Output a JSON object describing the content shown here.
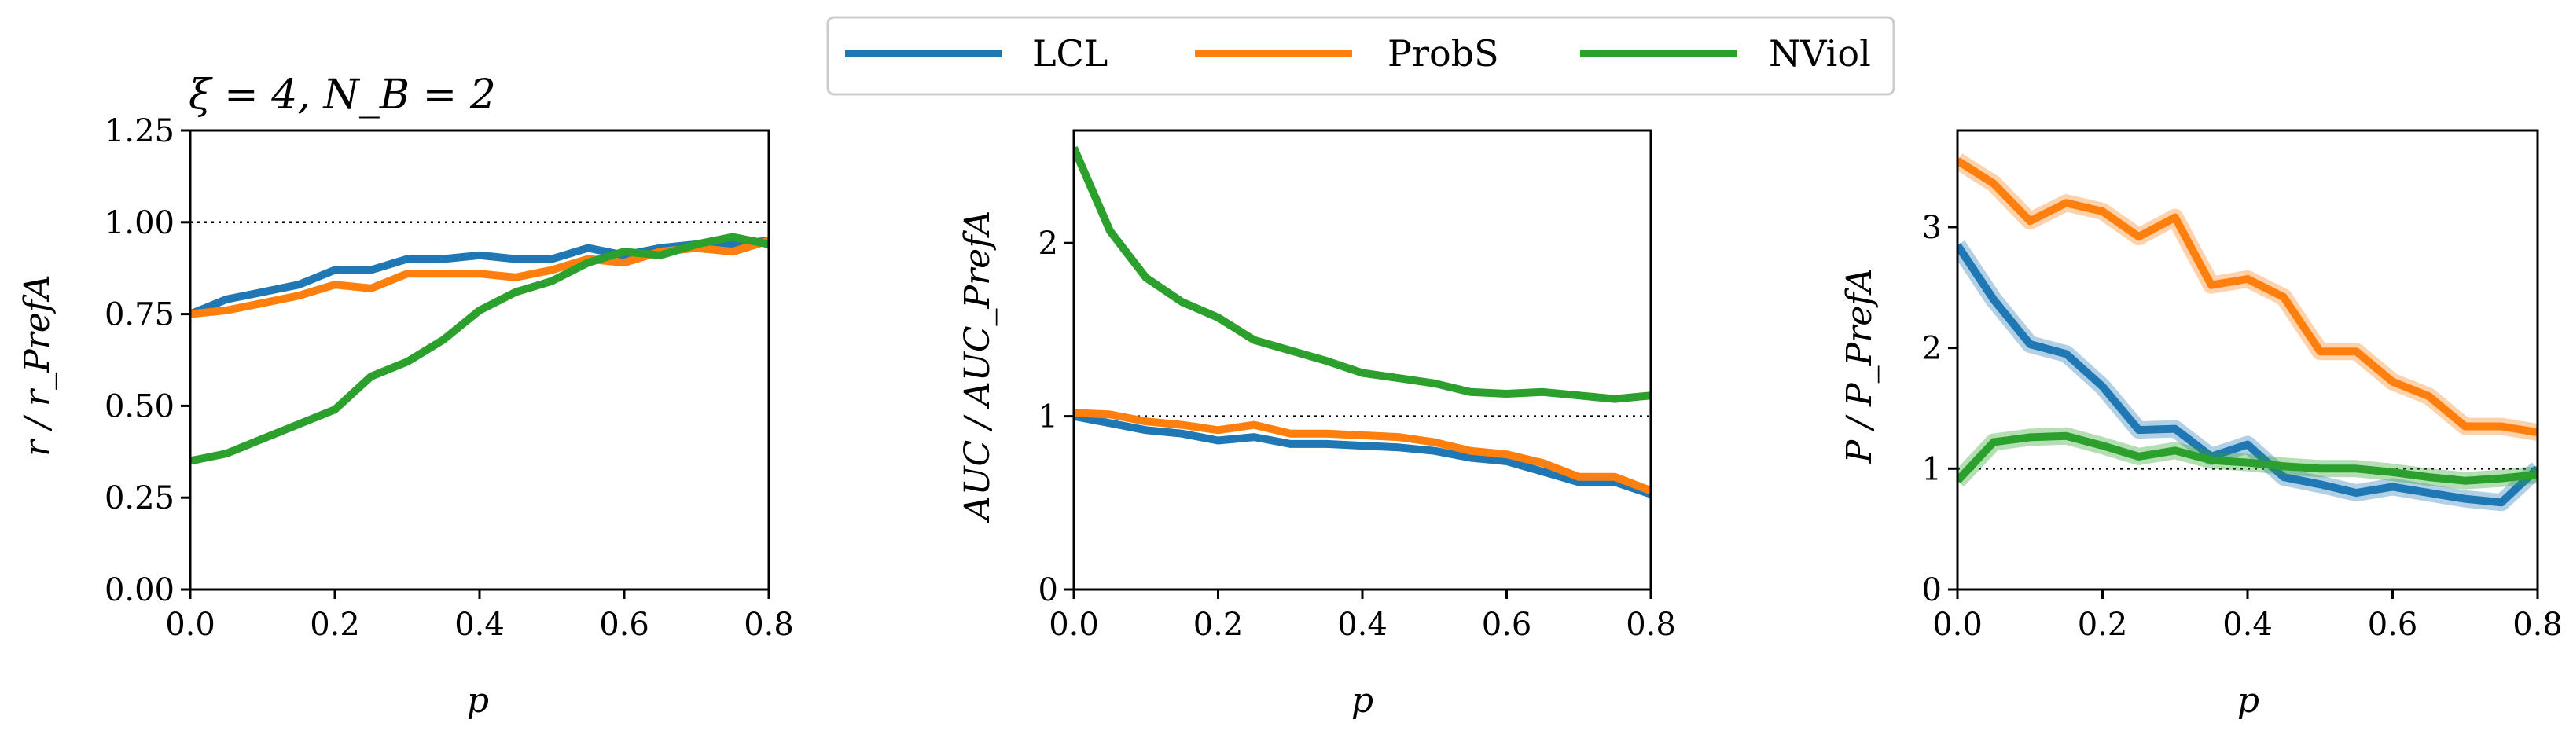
{
  "chart_data": [
    {
      "type": "line",
      "title": "ξ = 4, N_B = 2",
      "xlabel": "p",
      "ylabel": "r / r_PrefA",
      "xlim": [
        0,
        0.8
      ],
      "ylim": [
        0,
        1.25
      ],
      "xticks": [
        "0.0",
        "0.2",
        "0.4",
        "0.6",
        "0.8"
      ],
      "yticks": [
        "0.00",
        "0.25",
        "0.50",
        "0.75",
        "1.00",
        "1.25"
      ],
      "reference_line": 1.0,
      "x": [
        0,
        0.05,
        0.1,
        0.15,
        0.2,
        0.25,
        0.3,
        0.35,
        0.4,
        0.45,
        0.5,
        0.55,
        0.6,
        0.65,
        0.7,
        0.75,
        0.8
      ],
      "series": [
        {
          "name": "LCL",
          "values": [
            0.75,
            0.79,
            0.81,
            0.83,
            0.87,
            0.87,
            0.9,
            0.9,
            0.91,
            0.9,
            0.9,
            0.93,
            0.91,
            0.93,
            0.94,
            0.94,
            0.95
          ]
        },
        {
          "name": "ProbS",
          "values": [
            0.75,
            0.76,
            0.78,
            0.8,
            0.83,
            0.82,
            0.86,
            0.86,
            0.86,
            0.85,
            0.87,
            0.9,
            0.89,
            0.92,
            0.93,
            0.92,
            0.95
          ]
        },
        {
          "name": "NViol",
          "values": [
            0.35,
            0.37,
            0.41,
            0.45,
            0.49,
            0.58,
            0.62,
            0.68,
            0.76,
            0.81,
            0.84,
            0.89,
            0.92,
            0.91,
            0.94,
            0.96,
            0.94
          ]
        }
      ]
    },
    {
      "type": "line",
      "title": "",
      "xlabel": "p",
      "ylabel": "AUC / AUC_PrefA",
      "xlim": [
        0,
        0.8
      ],
      "ylim": [
        0,
        2.65
      ],
      "xticks": [
        "0.0",
        "0.2",
        "0.4",
        "0.6",
        "0.8"
      ],
      "yticks": [
        "0",
        "1",
        "2"
      ],
      "reference_line": 1.0,
      "x": [
        0,
        0.05,
        0.1,
        0.15,
        0.2,
        0.25,
        0.3,
        0.35,
        0.4,
        0.45,
        0.5,
        0.55,
        0.6,
        0.65,
        0.7,
        0.75,
        0.8
      ],
      "series": [
        {
          "name": "LCL",
          "values": [
            1.0,
            0.96,
            0.92,
            0.9,
            0.86,
            0.88,
            0.84,
            0.84,
            0.83,
            0.82,
            0.8,
            0.76,
            0.74,
            0.68,
            0.62,
            0.62,
            0.55
          ]
        },
        {
          "name": "ProbS",
          "values": [
            1.02,
            1.01,
            0.97,
            0.95,
            0.92,
            0.95,
            0.9,
            0.9,
            0.89,
            0.88,
            0.85,
            0.8,
            0.78,
            0.73,
            0.65,
            0.65,
            0.57
          ]
        },
        {
          "name": "NViol",
          "values": [
            2.55,
            2.07,
            1.8,
            1.66,
            1.57,
            1.44,
            1.38,
            1.32,
            1.25,
            1.22,
            1.19,
            1.14,
            1.13,
            1.14,
            1.12,
            1.1,
            1.12
          ]
        }
      ]
    },
    {
      "type": "line",
      "title": "",
      "xlabel": "p",
      "ylabel": "P / P_PrefA",
      "xlim": [
        0,
        0.8
      ],
      "ylim": [
        0,
        3.8
      ],
      "xticks": [
        "0.0",
        "0.2",
        "0.4",
        "0.6",
        "0.8"
      ],
      "yticks": [
        "0",
        "1",
        "2",
        "3"
      ],
      "reference_line": 1.0,
      "x": [
        0,
        0.05,
        0.1,
        0.15,
        0.2,
        0.25,
        0.3,
        0.35,
        0.4,
        0.45,
        0.5,
        0.55,
        0.6,
        0.65,
        0.7,
        0.75,
        0.8
      ],
      "series": [
        {
          "name": "LCL",
          "values": [
            2.85,
            2.4,
            2.03,
            1.95,
            1.68,
            1.32,
            1.33,
            1.1,
            1.2,
            0.93,
            0.87,
            0.8,
            0.85,
            0.8,
            0.75,
            0.72,
            1.0
          ]
        },
        {
          "name": "ProbS",
          "values": [
            3.55,
            3.36,
            3.05,
            3.2,
            3.13,
            2.92,
            3.08,
            2.52,
            2.57,
            2.42,
            1.97,
            1.97,
            1.72,
            1.6,
            1.35,
            1.35,
            1.3
          ]
        },
        {
          "name": "NViol",
          "values": [
            0.9,
            1.22,
            1.26,
            1.27,
            1.19,
            1.1,
            1.15,
            1.07,
            1.05,
            1.02,
            1.0,
            1.0,
            0.97,
            0.93,
            0.9,
            0.92,
            0.95
          ]
        }
      ]
    }
  ],
  "legend": {
    "position": "top-center",
    "entries": [
      {
        "name": "LCL",
        "color": "#1f77b4"
      },
      {
        "name": "ProbS",
        "color": "#ff7f0e"
      },
      {
        "name": "NViol",
        "color": "#2ca02c"
      }
    ]
  },
  "colors": {
    "LCL": "#1f77b4",
    "ProbS": "#ff7f0e",
    "NViol": "#2ca02c"
  }
}
